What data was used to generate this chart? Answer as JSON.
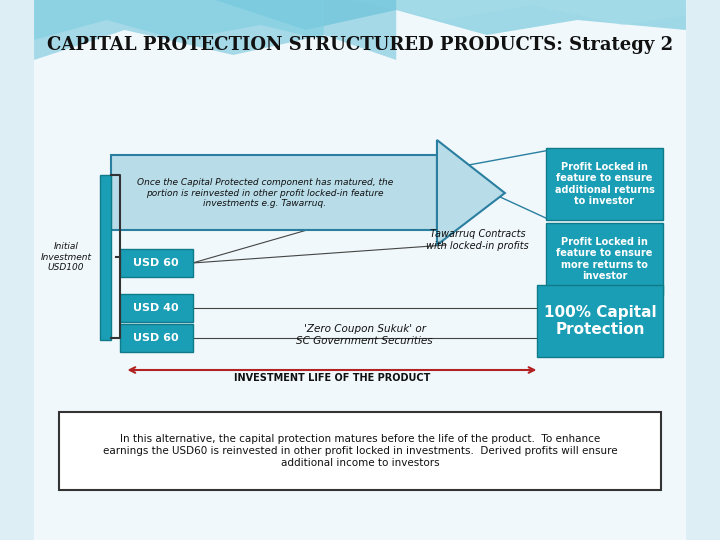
{
  "title": "CAPITAL PROTECTION STRUCTURED PRODUCTS: Strategy 2",
  "title_fontsize": 13,
  "bg_top_color": "#a8dde9",
  "bg_wave_color": "#5bbcd6",
  "bg_main_color": "#e8f4f8",
  "teal_box_color": "#1a9eb5",
  "teal_dark_color": "#0e7a8a",
  "arrow_fill_color": "#b8dce8",
  "arrow_edge_color": "#2a7fa0",
  "left_bar_color": "#5bbcd6",
  "red_line_color": "#b22222",
  "box_text_color": "#ffffff",
  "dark_text_color": "#1a1a1a",
  "main_text_color": "#2a2a2a",
  "initial_investment_label": "Initial\nInvestment\nUSD100",
  "usd60_label_top": "USD 60",
  "usd40_label": "USD 40",
  "usd60_label_bot": "USD 60",
  "big_arrow_text": "Once the Capital Protected component has matured, the\nportion is reinvested in other profit locked-in feature\ninvestments e.g. Tawarruq.",
  "tawarruq_label": "Tawarruq Contracts\nwith locked-in profits",
  "zero_coupon_label": "'Zero Coupon Sukuk' or\nSC Government Securities",
  "capital_protection_label": "100% Capital\nProtection",
  "profit_locked1_label": "Profit Locked in\nfeature to ensure\nadditional returns\nto investor",
  "profit_locked2_label": "Profit Locked in\nfeature to ensure\nmore returns to\ninvestor",
  "investment_life_label": "INVESTMENT LIFE OF THE PRODUCT",
  "bottom_text": "In this alternative, the capital protection matures before the life of the product.  To enhance\nearnings the USD60 is reinvested in other profit locked in investments.  Derived profits will ensure\nadditional income to investors"
}
